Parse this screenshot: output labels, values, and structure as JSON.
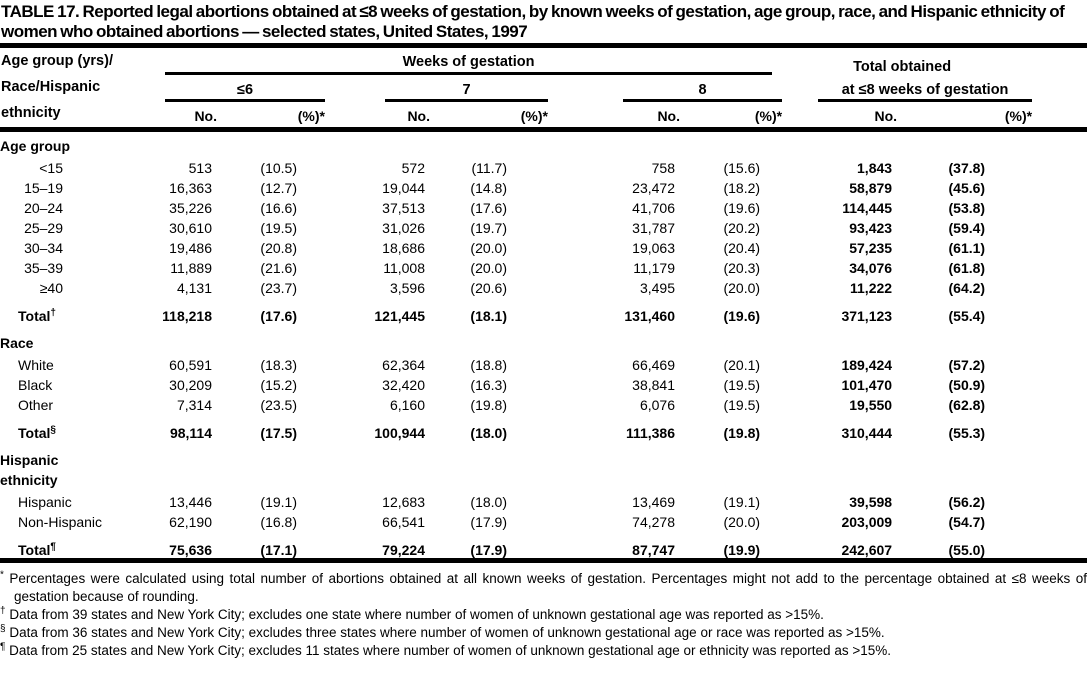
{
  "title": "TABLE 17. Reported legal abortions obtained at ≤8 weeks of gestation, by known weeks of gestation, age group, race, and Hispanic ethnicity of women who obtained abortions — selected states, United States, 1997",
  "header": {
    "row_label": [
      "Age group (yrs)/",
      "Race/Hispanic",
      "ethnicity"
    ],
    "weeks_group": "Weeks of gestation",
    "week_cols": [
      "≤6",
      "7",
      "8"
    ],
    "total_line1": "Total obtained",
    "total_line2": "at ≤8 weeks of gestation",
    "no_label": "No.",
    "pct_label": "(%)*"
  },
  "table": {
    "sections": [
      {
        "name_lines": [
          "Age group"
        ],
        "rows": [
          {
            "label": "<15",
            "align": "right",
            "cells": [
              "513",
              "(10.5)",
              "572",
              "(11.7)",
              "758",
              "(15.6)",
              "1,843",
              "(37.8)"
            ]
          },
          {
            "label": "15–19",
            "align": "right",
            "cells": [
              "16,363",
              "(12.7)",
              "19,044",
              "(14.8)",
              "23,472",
              "(18.2)",
              "58,879",
              "(45.6)"
            ]
          },
          {
            "label": "20–24",
            "align": "right",
            "cells": [
              "35,226",
              "(16.6)",
              "37,513",
              "(17.6)",
              "41,706",
              "(19.6)",
              "114,445",
              "(53.8)"
            ]
          },
          {
            "label": "25–29",
            "align": "right",
            "cells": [
              "30,610",
              "(19.5)",
              "31,026",
              "(19.7)",
              "31,787",
              "(20.2)",
              "93,423",
              "(59.4)"
            ]
          },
          {
            "label": "30–34",
            "align": "right",
            "cells": [
              "19,486",
              "(20.8)",
              "18,686",
              "(20.0)",
              "19,063",
              "(20.4)",
              "57,235",
              "(61.1)"
            ]
          },
          {
            "label": "35–39",
            "align": "right",
            "cells": [
              "11,889",
              "(21.6)",
              "11,008",
              "(20.0)",
              "11,179",
              "(20.3)",
              "34,076",
              "(61.8)"
            ]
          },
          {
            "label": "≥40",
            "align": "right",
            "cells": [
              "4,131",
              "(23.7)",
              "3,596",
              "(20.6)",
              "3,495",
              "(20.0)",
              "11,222",
              "(64.2)"
            ]
          },
          {
            "label": "Total",
            "marker": "†",
            "total": true,
            "cells": [
              "118,218",
              "(17.6)",
              "121,445",
              "(18.1)",
              "131,460",
              "(19.6)",
              "371,123",
              "(55.4)"
            ]
          }
        ]
      },
      {
        "name_lines": [
          "Race"
        ],
        "rows": [
          {
            "label": "White",
            "cells": [
              "60,591",
              "(18.3)",
              "62,364",
              "(18.8)",
              "66,469",
              "(20.1)",
              "189,424",
              "(57.2)"
            ]
          },
          {
            "label": "Black",
            "cells": [
              "30,209",
              "(15.2)",
              "32,420",
              "(16.3)",
              "38,841",
              "(19.5)",
              "101,470",
              "(50.9)"
            ]
          },
          {
            "label": "Other",
            "cells": [
              "7,314",
              "(23.5)",
              "6,160",
              "(19.8)",
              "6,076",
              "(19.5)",
              "19,550",
              "(62.8)"
            ]
          },
          {
            "label": "Total",
            "marker": "§",
            "total": true,
            "cells": [
              "98,114",
              "(17.5)",
              "100,944",
              "(18.0)",
              "111,386",
              "(19.8)",
              "310,444",
              "(55.3)"
            ]
          }
        ]
      },
      {
        "name_lines": [
          "Hispanic",
          "ethnicity"
        ],
        "rows": [
          {
            "label": "Hispanic",
            "cells": [
              "13,446",
              "(19.1)",
              "12,683",
              "(18.0)",
              "13,469",
              "(19.1)",
              "39,598",
              "(56.2)"
            ]
          },
          {
            "label": "Non-Hispanic",
            "cells": [
              "62,190",
              "(16.8)",
              "66,541",
              "(17.9)",
              "74,278",
              "(20.0)",
              "203,009",
              "(54.7)"
            ]
          },
          {
            "label": "Total",
            "marker": "¶",
            "total": true,
            "cells": [
              "75,636",
              "(17.1)",
              "79,224",
              "(17.9)",
              "87,747",
              "(19.9)",
              "242,607",
              "(55.0)"
            ]
          }
        ]
      }
    ]
  },
  "footnotes": [
    {
      "marker": "*",
      "text": "Percentages were calculated using total number of abortions obtained at all known weeks of gestation. Percentages might not add to the percentage obtained at ≤8 weeks of gestation because of rounding."
    },
    {
      "marker": "†",
      "text": "Data from 39 states and New York City; excludes one state where number of women of unknown gestational age was reported as >15%."
    },
    {
      "marker": "§",
      "text": "Data from 36 states and New York City; excludes three states where number of women of unknown gestational age or race was reported as >15%."
    },
    {
      "marker": "¶",
      "text": "Data from 25 states and New York City; excludes 11 states where number of women of unknown gestational age or ethnicity was reported as >15%."
    }
  ]
}
